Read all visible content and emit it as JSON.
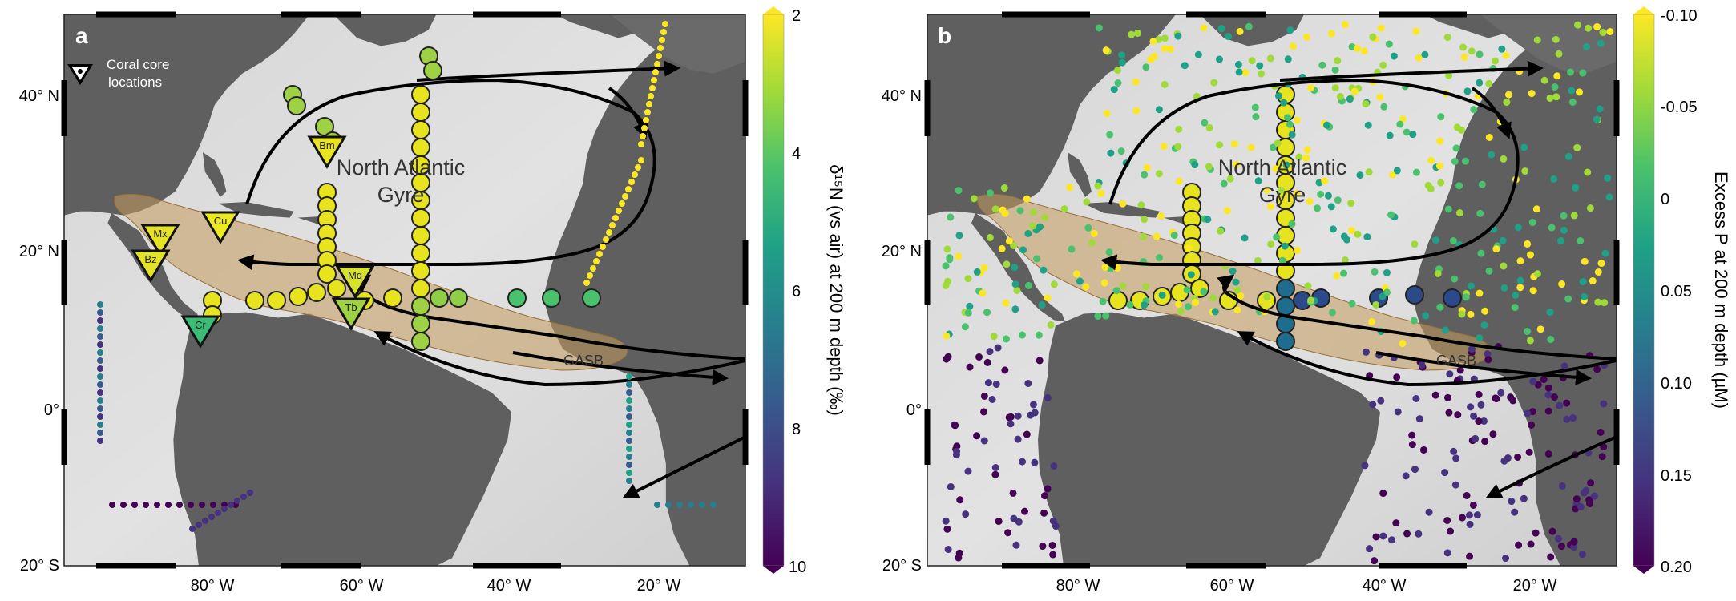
{
  "panel_a": {
    "letter": "a",
    "legend": {
      "line1": "Coral core",
      "line2": "locations"
    },
    "labels": {
      "gyre1": "North Atlantic",
      "gyre2": "Gyre",
      "gasb": "GASB"
    },
    "lat_ticks": [
      "40° N",
      "20° N",
      "0°",
      "20° S"
    ],
    "lon_ticks": [
      "80° W",
      "60° W",
      "40° W",
      "20° W"
    ],
    "corals": [
      {
        "name": "Mx",
        "color": "#e6e226"
      },
      {
        "name": "Bz",
        "color": "#e3e226"
      },
      {
        "name": "Cu",
        "color": "#eeea20"
      },
      {
        "name": "Bm",
        "color": "#e8e41f"
      },
      {
        "name": "Mq",
        "color": "#d6e22c"
      },
      {
        "name": "Tb",
        "color": "#9fd145"
      },
      {
        "name": "Cr",
        "color": "#3bbb75"
      }
    ],
    "colorbar": {
      "title": "δ¹⁵N (vs air) at 200 m depth (‰)",
      "ticks": [
        "2",
        "4",
        "6",
        "8",
        "10"
      ],
      "colors": [
        "#fde725",
        "#a0da39",
        "#4ac16d",
        "#1fa187",
        "#277f8e",
        "#365c8d",
        "#46327e",
        "#440154"
      ]
    }
  },
  "panel_b": {
    "letter": "b",
    "labels": {
      "gyre1": "North Atlantic",
      "gyre2": "Gyre",
      "gasb": "GASB"
    },
    "lat_ticks": [
      "40° N",
      "20° N",
      "0°",
      "20° S"
    ],
    "lon_ticks": [
      "80° W",
      "60° W",
      "40° W",
      "20° W"
    ],
    "colorbar": {
      "title": "Excess P at 200 m depth (µM)",
      "ticks": [
        "-0.10",
        "-0.05",
        "0",
        "0.05",
        "0.10",
        "0.15",
        "0.20"
      ],
      "colors": [
        "#fde725",
        "#a0da39",
        "#4ac16d",
        "#1fa187",
        "#277f8e",
        "#365c8d",
        "#46327e",
        "#440154"
      ]
    }
  }
}
